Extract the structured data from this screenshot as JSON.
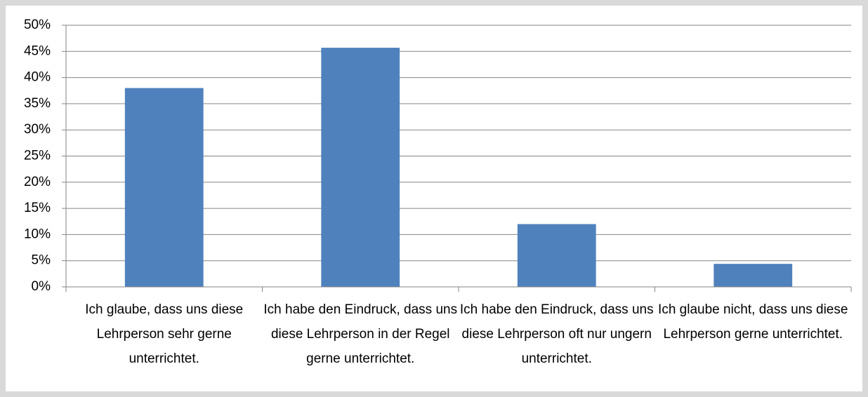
{
  "chart_data": {
    "type": "bar",
    "categories": [
      "Ich glaube, dass uns diese Lehrperson sehr gerne unterrichtet.",
      "Ich habe den Eindruck, dass uns diese Lehrperson in der Regel gerne unterrichtet.",
      "Ich habe den Eindruck, dass uns diese Lehrperson oft nur ungern unterrichtet.",
      "Ich glaube nicht, dass uns diese Lehrperson gerne unterrichtet."
    ],
    "values": [
      38,
      45.7,
      12,
      4.4
    ],
    "color": "#4f81bd",
    "ylim": [
      0,
      50
    ],
    "yticks": [
      {
        "value": 0,
        "label": "0%"
      },
      {
        "value": 5,
        "label": "5%"
      },
      {
        "value": 10,
        "label": "10%"
      },
      {
        "value": 15,
        "label": "15%"
      },
      {
        "value": 20,
        "label": "20%"
      },
      {
        "value": 25,
        "label": "25%"
      },
      {
        "value": 30,
        "label": "30%"
      },
      {
        "value": 35,
        "label": "35%"
      },
      {
        "value": 40,
        "label": "40%"
      },
      {
        "value": 45,
        "label": "45%"
      },
      {
        "value": 50,
        "label": "50%"
      }
    ],
    "grid": true
  }
}
